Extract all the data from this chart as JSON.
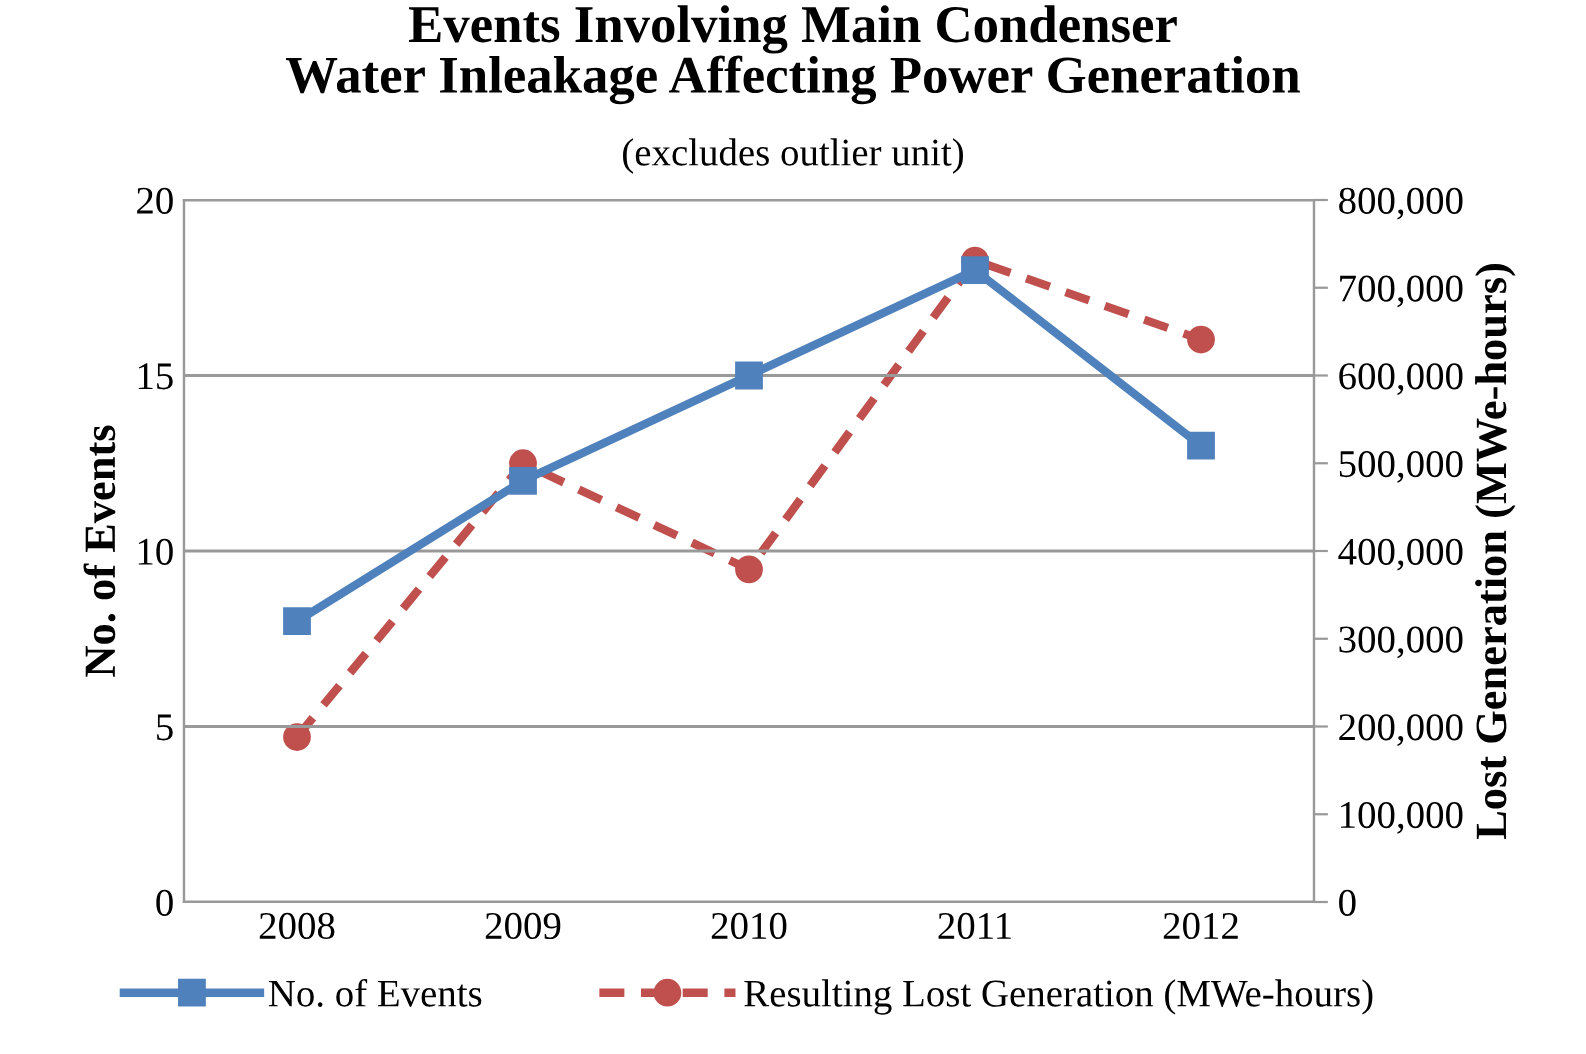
{
  "chart_data": {
    "type": "line",
    "title": "Events Involving Main Condenser\nWater Inleakage Affecting Power Generation",
    "subtitle": "(excludes outlier unit)",
    "ylabel": "No. of Events",
    "y2label": "Lost Generation (MWe-hours)",
    "categories": [
      "2008",
      "2009",
      "2010",
      "2011",
      "2012"
    ],
    "series": [
      {
        "name": "No. of Events",
        "color": "#4f81bd",
        "values": [
          8,
          12,
          15,
          18,
          13
        ],
        "marker": "square",
        "line_style": "solid"
      },
      {
        "name": "Resulting Lost Generation (MWe-hours)",
        "color": "#c0504d",
        "values": [
          188000,
          500000,
          379000,
          731000,
          641000
        ],
        "axis": "y2",
        "marker": "circle",
        "line_style": "dashed"
      }
    ],
    "ylim": [
      0,
      20
    ],
    "yticks": [
      0,
      5,
      10,
      15,
      20
    ],
    "y2lim": [
      0,
      800000
    ],
    "y2ticks": [
      {
        "value": 0,
        "label": "0"
      },
      {
        "value": 100000,
        "label": "100,000"
      },
      {
        "value": 200000,
        "label": "200,000"
      },
      {
        "value": 300000,
        "label": "300,000"
      },
      {
        "value": 400000,
        "label": "400,000"
      },
      {
        "value": 500000,
        "label": "500,000"
      },
      {
        "value": 600000,
        "label": "600,000"
      },
      {
        "value": 700000,
        "label": "700,000"
      },
      {
        "value": 800000,
        "label": "800,000"
      }
    ],
    "grid": "y",
    "legend": "bottom"
  }
}
